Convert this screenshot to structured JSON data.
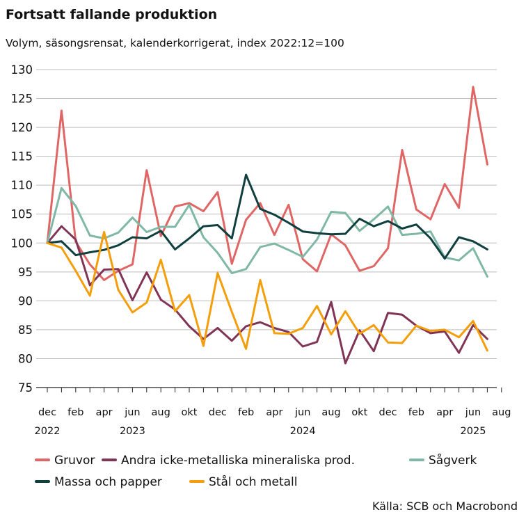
{
  "chart_data": {
    "type": "line",
    "title": "Fortsatt fallande produktion",
    "subtitle": "Volym, säsongsrensat, kalenderkorrigerat, index 2022:12=100",
    "source": "Källa: SCB och Macrobond",
    "ylim": [
      75,
      130
    ],
    "yticks": [
      130,
      125,
      120,
      115,
      110,
      105,
      100,
      95,
      90,
      85,
      80,
      75
    ],
    "grid": true,
    "legend_position": "bottom",
    "x_start": "2022-12",
    "x_end": "2025-08",
    "x_tick_labels": [
      {
        "month": "2022-12",
        "label": "dec",
        "year": "2022"
      },
      {
        "month": "2023-02",
        "label": "feb",
        "year": ""
      },
      {
        "month": "2023-04",
        "label": "apr",
        "year": ""
      },
      {
        "month": "2023-06",
        "label": "jun",
        "year": "2023"
      },
      {
        "month": "2023-08",
        "label": "aug",
        "year": ""
      },
      {
        "month": "2023-10",
        "label": "okt",
        "year": ""
      },
      {
        "month": "2023-12",
        "label": "dec",
        "year": ""
      },
      {
        "month": "2024-02",
        "label": "feb",
        "year": ""
      },
      {
        "month": "2024-04",
        "label": "apr",
        "year": ""
      },
      {
        "month": "2024-06",
        "label": "jun",
        "year": "2024"
      },
      {
        "month": "2024-08",
        "label": "aug",
        "year": ""
      },
      {
        "month": "2024-10",
        "label": "okt",
        "year": ""
      },
      {
        "month": "2024-12",
        "label": "dec",
        "year": ""
      },
      {
        "month": "2025-02",
        "label": "feb",
        "year": ""
      },
      {
        "month": "2025-04",
        "label": "apr",
        "year": ""
      },
      {
        "month": "2025-06",
        "label": "jun",
        "year": "2025"
      },
      {
        "month": "2025-08",
        "label": "aug",
        "year": ""
      }
    ],
    "series": [
      {
        "name": "Gruvor",
        "color": "#e06666",
        "values": [
          100,
          122.9,
          100.2,
          96.3,
          93.6,
          95.2,
          96.3,
          112.6,
          101.2,
          106.3,
          106.9,
          105.5,
          108.8,
          96.4,
          104,
          106.9,
          101.4,
          106.6,
          97.2,
          95.1,
          101.5,
          99.6,
          95.2,
          96,
          99.1,
          116.1,
          105.8,
          104.1,
          110.2,
          106.1,
          127,
          113.6
        ]
      },
      {
        "name": "Andra icke-metalliska mineraliska prod.",
        "color": "#803456",
        "values": [
          100,
          102.9,
          100.6,
          92.7,
          95.4,
          95.5,
          90.1,
          94.9,
          90.2,
          88.5,
          85.6,
          83.4,
          85.3,
          83.1,
          85.6,
          86.3,
          85.3,
          84.6,
          82.1,
          82.9,
          89.8,
          79.2,
          84.9,
          81.3,
          87.9,
          87.6,
          85.7,
          84.4,
          84.7,
          81,
          85.8,
          83.4
        ]
      },
      {
        "name": "Sågverk",
        "color": "#7fb8a6",
        "values": [
          100,
          109.5,
          106.4,
          101.3,
          100.8,
          101.8,
          104.4,
          101.9,
          102.8,
          102.8,
          106.6,
          101,
          98.3,
          94.8,
          95.5,
          99.3,
          99.9,
          98.8,
          97.6,
          100.6,
          105.4,
          105.2,
          102.1,
          104.1,
          106.3,
          101.4,
          101.6,
          102,
          97.5,
          97,
          99.1,
          94.2
        ]
      },
      {
        "name": "Massa och papper",
        "color": "#0f3f3f",
        "values": [
          100,
          100.3,
          97.9,
          98.4,
          98.8,
          99.6,
          101,
          100.8,
          102.1,
          98.9,
          100.8,
          102.9,
          103.1,
          100.8,
          111.8,
          105.9,
          104.9,
          103.5,
          102,
          101.7,
          101.5,
          101.6,
          104.2,
          102.9,
          103.8,
          102.5,
          103.2,
          100.8,
          97.3,
          101,
          100.3,
          98.9
        ]
      },
      {
        "name": "Stål och metall",
        "color": "#f59e0b",
        "values": [
          100,
          99.2,
          95.2,
          90.9,
          101.9,
          91.9,
          88,
          89.7,
          97.1,
          88.2,
          91,
          82.2,
          94.8,
          88.1,
          81.7,
          93.6,
          84.4,
          84.3,
          85.3,
          89.1,
          84.2,
          88.2,
          84.3,
          85.8,
          82.8,
          82.7,
          85.7,
          84.8,
          85,
          83.7,
          86.5,
          81.4
        ]
      }
    ]
  }
}
